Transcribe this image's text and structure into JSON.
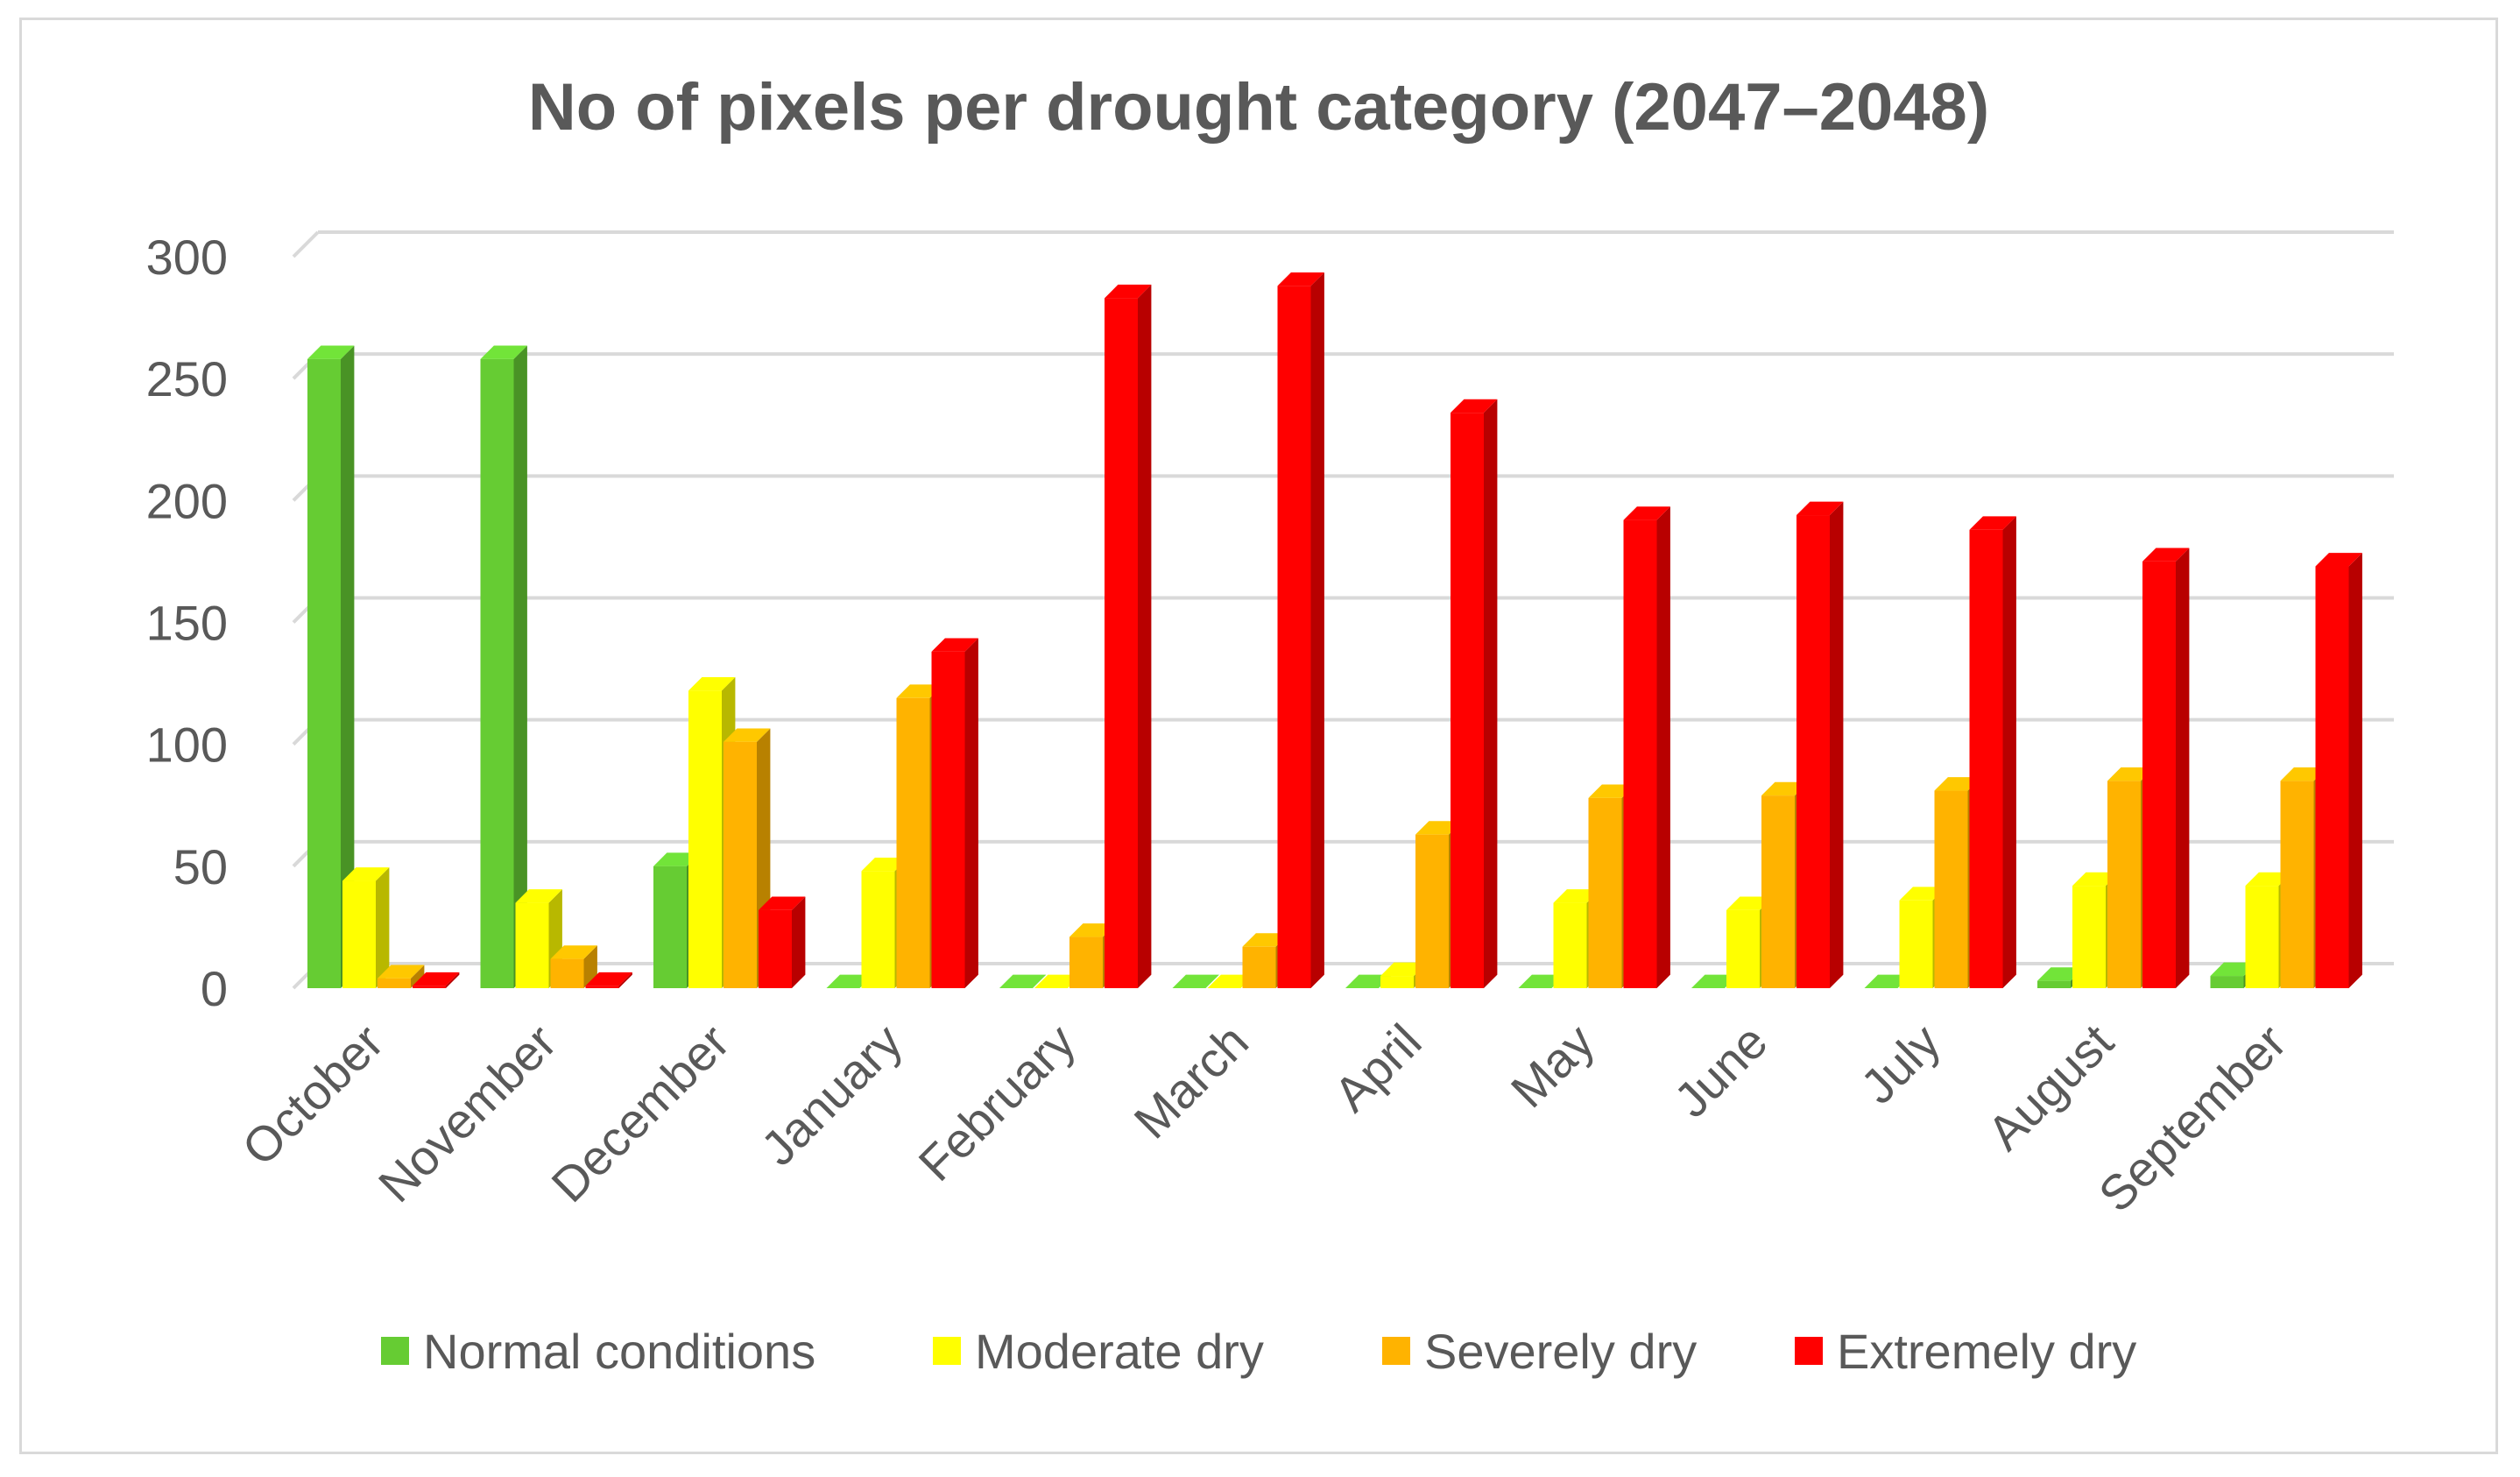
{
  "chart_data": {
    "type": "bar",
    "title": "No of pixels per drought category (2047–2048)",
    "xlabel": "",
    "ylabel": "",
    "ylim": [
      0,
      300
    ],
    "yticks": [
      0,
      50,
      100,
      150,
      200,
      250,
      300
    ],
    "grid": true,
    "legend_position": "bottom",
    "categories": [
      "October",
      "November",
      "December",
      "January",
      "February",
      "March",
      "April",
      "May",
      "June",
      "July",
      "August",
      "September"
    ],
    "series": [
      {
        "name": "Normal conditions",
        "color": "#66cc33",
        "values": [
          258,
          258,
          50,
          0,
          0,
          0,
          0,
          0,
          0,
          0,
          3,
          5
        ]
      },
      {
        "name": "Moderate dry",
        "color": "#ffff00",
        "values": [
          44,
          35,
          122,
          48,
          0,
          0,
          5,
          35,
          32,
          36,
          42,
          42
        ]
      },
      {
        "name": "Severely dry",
        "color": "#ffb300",
        "values": [
          4,
          12,
          101,
          119,
          21,
          17,
          63,
          78,
          79,
          81,
          85,
          85
        ]
      },
      {
        "name": "Extremely dry",
        "color": "#ff0000",
        "values": [
          1,
          1,
          32,
          138,
          283,
          288,
          236,
          192,
          194,
          188,
          175,
          173
        ]
      }
    ]
  }
}
